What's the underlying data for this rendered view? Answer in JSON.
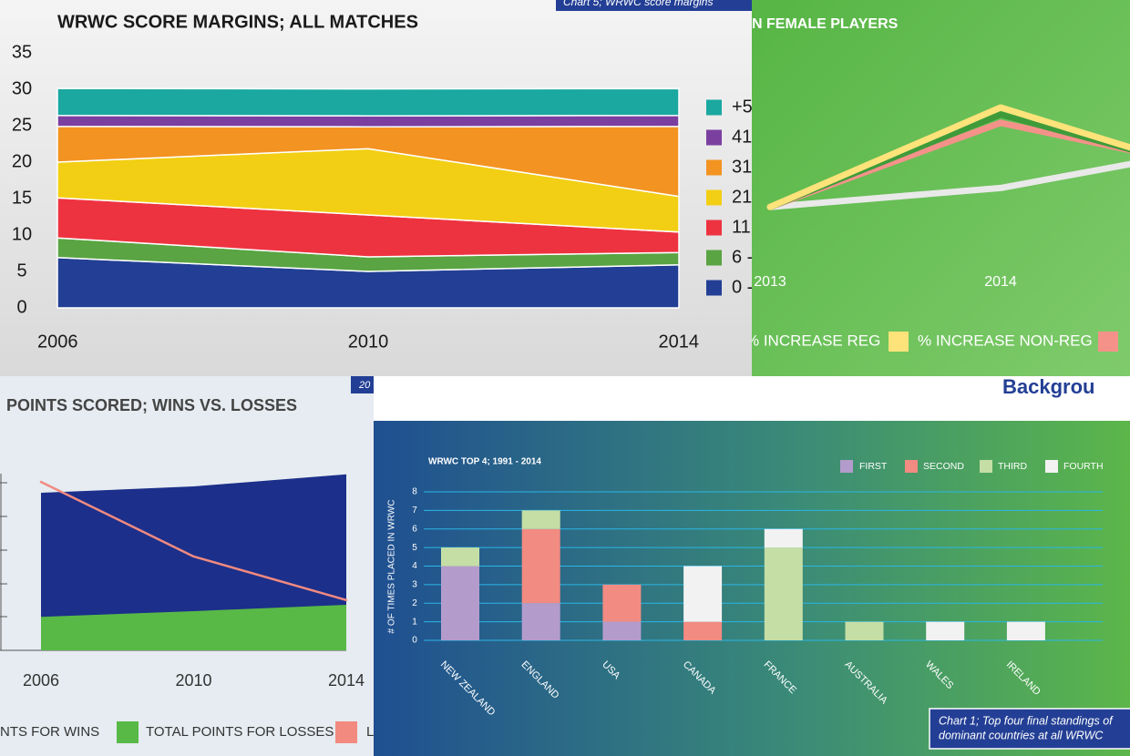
{
  "heading": "Backgrou",
  "chart_data": [
    {
      "type": "area",
      "stacked": true,
      "title": "WRWC SCORE MARGINS; ALL MATCHES",
      "note": "Chart 5; WRWC score margins",
      "categories": [
        "2006",
        "2010",
        "2014"
      ],
      "ylim": [
        0,
        35
      ],
      "yticks": [
        0,
        5,
        10,
        15,
        20,
        25,
        30,
        35
      ],
      "series": [
        {
          "name": "0 -",
          "color": "#233f95",
          "values": [
            6.9,
            5,
            5.9
          ]
        },
        {
          "name": "6 -",
          "color": "#5aa443",
          "values": [
            2.7,
            2,
            1.7
          ]
        },
        {
          "name": "11",
          "color": "#ee3340",
          "values": [
            5.5,
            5.75,
            2.8
          ]
        },
        {
          "name": "21",
          "color": "#f2cf14",
          "values": [
            4.9,
            9.1,
            4.9
          ]
        },
        {
          "name": "31",
          "color": "#f39321",
          "values": [
            4.9,
            3,
            9.6
          ]
        },
        {
          "name": "41",
          "color": "#7b3fa0",
          "values": [
            1.5,
            1.5,
            1.5
          ]
        },
        {
          "name": "+5",
          "color": "#1aa8a0",
          "values": [
            3.7,
            3.7,
            3.7
          ]
        }
      ]
    },
    {
      "type": "line",
      "title": "N FEMALE PLAYERS",
      "categories": [
        "2013",
        "2014",
        null
      ],
      "ylim": [
        0,
        100
      ],
      "series": [
        {
          "name": "% INCREASE REG",
          "color": "#e9e9e9",
          "values": [
            28,
            36,
            54
          ]
        },
        {
          "name": "% INCREASE NON-REG",
          "color": "#fde37a",
          "values": [
            28,
            70,
            40
          ]
        },
        {
          "color": "#3f9b3a",
          "values": [
            28,
            67,
            41
          ]
        },
        {
          "color": "#f4928a",
          "values": [
            28,
            63.5,
            43
          ]
        }
      ]
    },
    {
      "type": "area",
      "stacked": false,
      "title": "POINTS SCORED; WINS VS. LOSSES",
      "note": "20",
      "categories": [
        "2006",
        "2010",
        "2014"
      ],
      "ylim": [
        0,
        110
      ],
      "series": [
        {
          "name": "NTS FOR WINS",
          "color": "#1c2f8a",
          "values": [
            94,
            97.8,
            105
          ]
        },
        {
          "name": "TOTAL POINTS FOR LOSSES",
          "color": "#58b947",
          "values": [
            20,
            23.4,
            27.2
          ]
        },
        {
          "name": "L",
          "color": "#f28a80",
          "type": "line",
          "values": [
            100.5,
            56,
            30
          ]
        }
      ]
    },
    {
      "type": "bar",
      "stacked": true,
      "title": "WRWC TOP 4; 1991 - 2014",
      "y_label": "# OF TIMES PLACED IN WRWC",
      "note": [
        "Chart 1; Top four final standings of",
        "dominant countries at all WRWC"
      ],
      "categories": [
        "NEW ZEALAND",
        "ENGLAND",
        "USA",
        "CANADA",
        "FRANCE",
        "AUSTRALIA",
        "WALES",
        "IRELAND"
      ],
      "ylim": [
        0,
        8
      ],
      "yticks": [
        0,
        1,
        2,
        3,
        4,
        5,
        6,
        7,
        8
      ],
      "grid": true,
      "series": [
        {
          "name": "FIRST",
          "color": "#b39ccc",
          "values": [
            4,
            2,
            1,
            0,
            0,
            0,
            0,
            0
          ]
        },
        {
          "name": "SECOND",
          "color": "#f28b82",
          "values": [
            0,
            4,
            2,
            1,
            0,
            0,
            0,
            0
          ]
        },
        {
          "name": "THIRD",
          "color": "#c5dea5",
          "values": [
            1,
            1,
            0,
            0,
            5,
            1,
            0,
            0
          ]
        },
        {
          "name": "FOURTH",
          "color": "#f2f2f2",
          "values": [
            0,
            0,
            0,
            3,
            1,
            0,
            1,
            1
          ]
        }
      ]
    }
  ]
}
